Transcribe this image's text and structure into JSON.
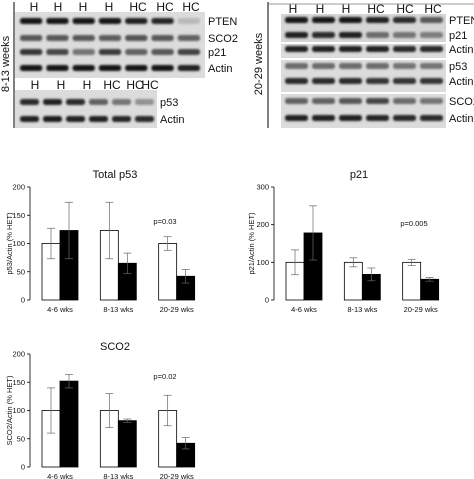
{
  "blots": {
    "left_period_label": "8-13 weeks",
    "right_period_label": "20-29 weeks",
    "left_top": {
      "lanes": [
        "H",
        "H",
        "H",
        "H",
        "HC",
        "HC",
        "HC"
      ],
      "rows": [
        "PTEN",
        "SCO2",
        "p21",
        "Actin"
      ]
    },
    "left_bottom": {
      "lanes": [
        "H",
        "H",
        "H",
        "HC",
        "HC",
        "HC"
      ],
      "rows": [
        "p53",
        "Actin"
      ]
    },
    "right": {
      "lanes": [
        "H",
        "H",
        "H",
        "HC",
        "HC",
        "HC"
      ],
      "rows": [
        "PTEN",
        "p21",
        "Actin",
        "p53",
        "Actin",
        "SCO2",
        "Actin"
      ]
    }
  },
  "chart_data": [
    {
      "type": "bar",
      "title": "Total p53",
      "ylabel": "p53/Actin (% HET)",
      "categories": [
        "4-6 wks",
        "8-13 wks",
        "20-29 wks"
      ],
      "ylim": [
        0,
        200
      ],
      "yticks": [
        0,
        50,
        100,
        150,
        200
      ],
      "series": [
        {
          "values": [
            100,
            123,
            100
          ],
          "errors": [
            27,
            50,
            12
          ],
          "color": "#ffffff"
        },
        {
          "values": [
            123,
            65,
            42
          ],
          "errors": [
            50,
            18,
            12
          ],
          "color": "#000000"
        }
      ],
      "annotation": "p=0.03"
    },
    {
      "type": "bar",
      "title": "p21",
      "ylabel": "p21/Actin (% HET)",
      "categories": [
        "4-6 wks",
        "8-13 wks",
        "20-29 wks"
      ],
      "ylim": [
        0,
        300
      ],
      "yticks": [
        0,
        100,
        200,
        300
      ],
      "series": [
        {
          "values": [
            100,
            100,
            100
          ],
          "errors": [
            33,
            12,
            8
          ],
          "color": "#ffffff"
        },
        {
          "values": [
            178,
            68,
            55
          ],
          "errors": [
            72,
            17,
            5
          ],
          "color": "#000000"
        }
      ],
      "annotation": "p=0.005"
    },
    {
      "type": "bar",
      "title": "SCO2",
      "ylabel": "SCO2/Actin (% HET)",
      "categories": [
        "4-6 wks",
        "8-13 wks",
        "20-29 wks"
      ],
      "ylim": [
        0,
        200
      ],
      "yticks": [
        0,
        50,
        100,
        150,
        200
      ],
      "series": [
        {
          "values": [
            100,
            100,
            100
          ],
          "errors": [
            40,
            30,
            27
          ],
          "color": "#ffffff"
        },
        {
          "values": [
            152,
            82,
            42
          ],
          "errors": [
            12,
            3,
            10
          ],
          "color": "#000000"
        }
      ],
      "annotation": "p=0.02"
    }
  ]
}
